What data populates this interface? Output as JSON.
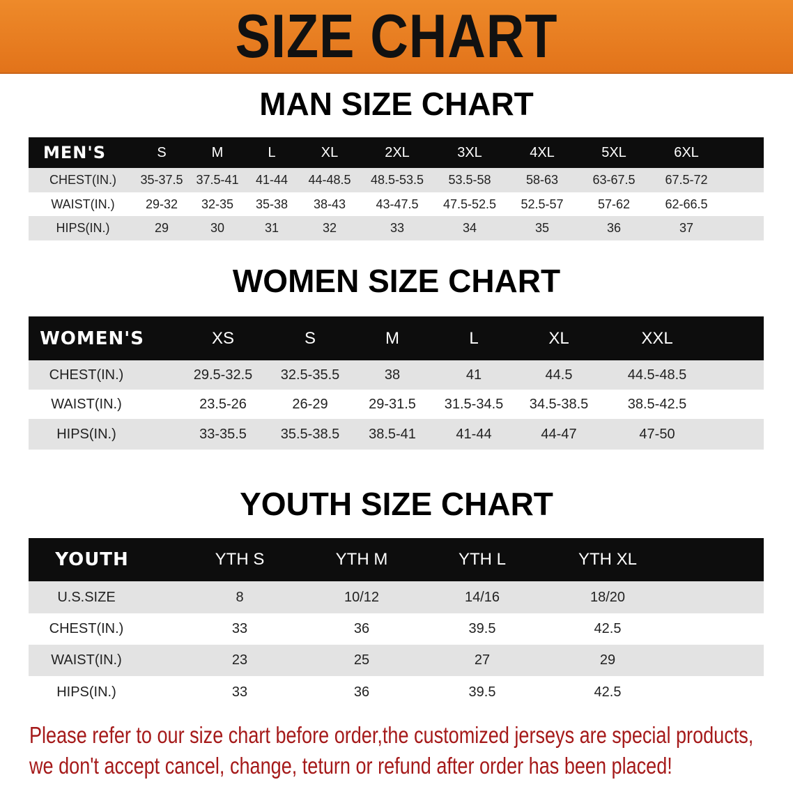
{
  "banner": {
    "title": "SIZE CHART",
    "color": "#e87c1e"
  },
  "men": {
    "title": "MAN SIZE CHART",
    "header": [
      "MEN'S",
      "S",
      "M",
      "L",
      "XL",
      "2XL",
      "3XL",
      "4XL",
      "5XL",
      "6XL"
    ],
    "rows": [
      [
        "CHEST(IN.)",
        "35-37.5",
        "37.5-41",
        "41-44",
        "44-48.5",
        "48.5-53.5",
        "53.5-58",
        "58-63",
        "63-67.5",
        "67.5-72"
      ],
      [
        "WAIST(IN.)",
        "29-32",
        "32-35",
        "35-38",
        "38-43",
        "43-47.5",
        "47.5-52.5",
        "52.5-57",
        "57-62",
        "62-66.5"
      ],
      [
        "HIPS(IN.)",
        "29",
        "30",
        "31",
        "32",
        "33",
        "34",
        "35",
        "36",
        "37"
      ]
    ]
  },
  "women": {
    "title": "WOMEN SIZE CHART",
    "header": [
      "WOMEN'S",
      "XS",
      "S",
      "M",
      "L",
      "XL",
      "XXL"
    ],
    "rows": [
      [
        "CHEST(IN.)",
        "29.5-32.5",
        "32.5-35.5",
        "38",
        "41",
        "44.5",
        "44.5-48.5"
      ],
      [
        "WAIST(IN.)",
        "23.5-26",
        "26-29",
        "29-31.5",
        "31.5-34.5",
        "34.5-38.5",
        "38.5-42.5"
      ],
      [
        "HIPS(IN.)",
        "33-35.5",
        "35.5-38.5",
        "38.5-41",
        "41-44",
        "44-47",
        "47-50"
      ]
    ]
  },
  "youth": {
    "title": "YOUTH SIZE CHART",
    "header": [
      "YOUTH",
      "YTH S",
      "YTH M",
      "YTH L",
      "YTH XL"
    ],
    "rows": [
      [
        "U.S.SIZE",
        "8",
        "10/12",
        "14/16",
        "18/20"
      ],
      [
        "CHEST(IN.)",
        "33",
        "36",
        "39.5",
        "42.5"
      ],
      [
        "WAIST(IN.)",
        "23",
        "25",
        "27",
        "29"
      ],
      [
        "HIPS(IN.)",
        "33",
        "36",
        "39.5",
        "42.5"
      ]
    ]
  },
  "note": {
    "line1": "Please refer to our size chart before order,the customized jerseys are special products,",
    "line2": "we don't accept cancel, change, teturn or refund after order has been placed!",
    "color": "#a51a1a"
  }
}
